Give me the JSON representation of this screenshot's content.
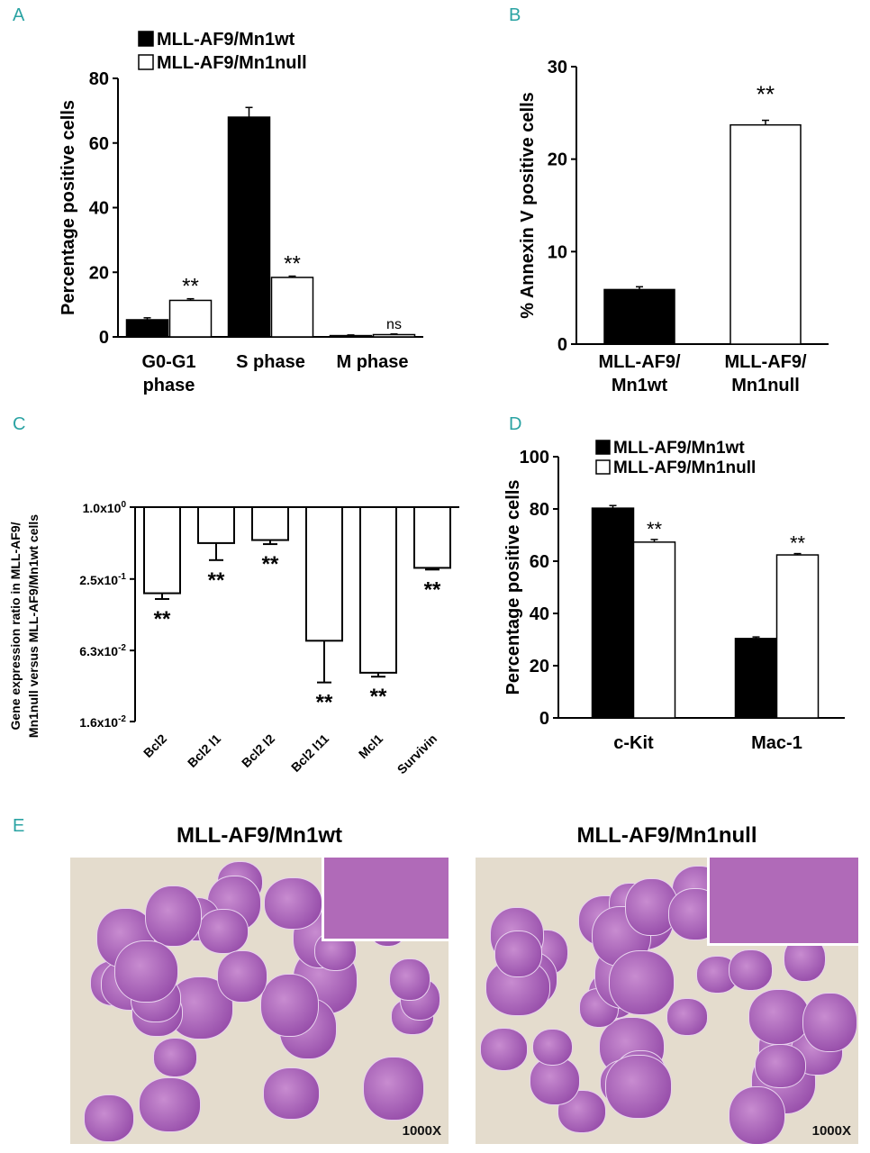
{
  "panels": {
    "A": {
      "letter": "A",
      "chart_data": {
        "type": "bar",
        "ylabel": "Percentage positive cells",
        "ylim": [
          0,
          80
        ],
        "yticks": [
          0,
          20,
          40,
          60,
          80
        ],
        "categories": [
          [
            "G0-G1",
            "phase"
          ],
          [
            "S phase"
          ],
          [
            "M phase"
          ]
        ],
        "series": [
          {
            "name": "MLL-AF9/Mn1wt",
            "fill": "#000000",
            "values": [
              5.3,
              68.0,
              0.4
            ],
            "errors": [
              0.6,
              3.0,
              0.2
            ]
          },
          {
            "name": "MLL-AF9/Mn1null",
            "fill": "#ffffff",
            "values": [
              11.3,
              18.4,
              0.7
            ],
            "errors": [
              0.5,
              0.4,
              0.2
            ]
          }
        ],
        "annotations": [
          "**",
          "**",
          "ns"
        ],
        "legend_position": "top"
      }
    },
    "B": {
      "letter": "B",
      "chart_data": {
        "type": "bar",
        "ylabel": "% Annexin V positive cells",
        "ylim": [
          0,
          30
        ],
        "yticks": [
          0,
          10,
          20,
          30
        ],
        "categories": [
          [
            "MLL-AF9/",
            "Mn1wt"
          ],
          [
            "MLL-AF9/",
            "Mn1null"
          ]
        ],
        "values": [
          5.9,
          23.7
        ],
        "errors": [
          0.3,
          0.5
        ],
        "fills": [
          "#000000",
          "#ffffff"
        ],
        "annotations": [
          "",
          "**"
        ]
      }
    },
    "C": {
      "letter": "C",
      "chart_data": {
        "type": "bar",
        "ylabel": [
          "Gene expression ratio in MLL-AF9/",
          "Mn1null versus MLL-AF9/Mn1wt cells"
        ],
        "yscale": "log",
        "ylim": [
          0.016,
          1.0
        ],
        "ytick_values": [
          1.0,
          0.25,
          0.063,
          0.016
        ],
        "ytick_labels": [
          [
            "1.0x10",
            "0"
          ],
          [
            "2.5x10",
            "-1"
          ],
          [
            "6.3x10",
            "-2"
          ],
          [
            "1.6x10",
            "-2"
          ]
        ],
        "categories": [
          "Bcl2",
          "Bcl2 l1",
          "Bcl2 l2",
          "Bcl2 l11",
          "Mcl1",
          "Survivin"
        ],
        "values": [
          0.19,
          0.5,
          0.53,
          0.076,
          0.041,
          0.31
        ],
        "error_lows": [
          0.17,
          0.36,
          0.49,
          0.034,
          0.038,
          0.3
        ],
        "annotations": [
          "**",
          "**",
          "**",
          "**",
          "**",
          "**"
        ]
      }
    },
    "D": {
      "letter": "D",
      "chart_data": {
        "type": "bar",
        "ylabel": "Percentage positive cells",
        "ylim": [
          0,
          100
        ],
        "yticks": [
          0,
          20,
          40,
          60,
          80,
          100
        ],
        "categories": [
          "c-Kit",
          "Mac-1"
        ],
        "series": [
          {
            "name": "MLL-AF9/Mn1wt",
            "fill": "#000000",
            "values": [
              80.3,
              30.4
            ],
            "errors": [
              1.0,
              0.6
            ]
          },
          {
            "name": "MLL-AF9/Mn1null",
            "fill": "#ffffff",
            "values": [
              67.3,
              62.4
            ],
            "errors": [
              1.0,
              0.5
            ]
          }
        ],
        "annotations": [
          "**",
          "**"
        ],
        "legend_position": "top-left"
      }
    },
    "E": {
      "letter": "E",
      "photos": [
        {
          "title": "MLL-AF9/Mn1wt",
          "magnification": "1000X"
        },
        {
          "title": "MLL-AF9/Mn1null",
          "magnification": "1000X"
        }
      ]
    }
  }
}
